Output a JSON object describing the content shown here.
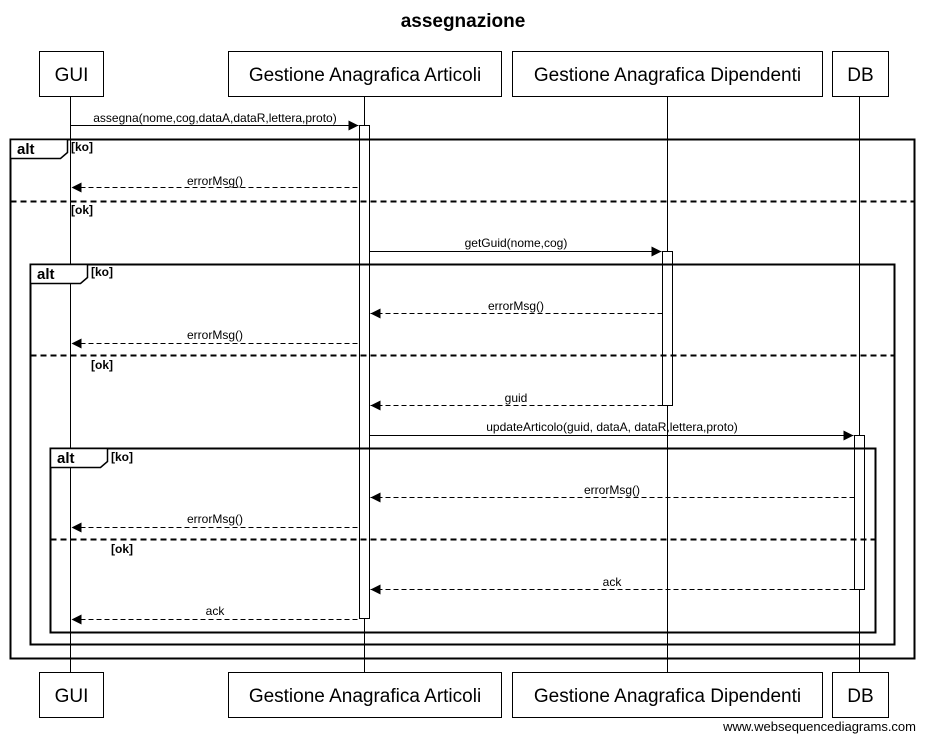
{
  "title": "assegnazione",
  "footer": "www.websequencediagrams.com",
  "participants": [
    {
      "id": "gui",
      "label": "GUI"
    },
    {
      "id": "art",
      "label": "Gestione Anagrafica Articoli"
    },
    {
      "id": "dip",
      "label": "Gestione Anagrafica Dipendenti"
    },
    {
      "id": "db",
      "label": "DB"
    }
  ],
  "messages": [
    {
      "label": "assegna(nome,cog,dataA,dataR,lettera,proto)",
      "from": "gui",
      "to": "art",
      "style": "solid"
    },
    {
      "label": "errorMsg()",
      "from": "art",
      "to": "gui",
      "style": "dashed"
    },
    {
      "label": "getGuid(nome,cog)",
      "from": "art",
      "to": "dip",
      "style": "solid"
    },
    {
      "label": "errorMsg()",
      "from": "dip",
      "to": "art",
      "style": "dashed"
    },
    {
      "label": "errorMsg()",
      "from": "art",
      "to": "gui",
      "style": "dashed"
    },
    {
      "label": "guid",
      "from": "dip",
      "to": "art",
      "style": "dashed"
    },
    {
      "label": "updateArticolo(guid, dataA, dataR,lettera,proto)",
      "from": "art",
      "to": "db",
      "style": "solid"
    },
    {
      "label": "errorMsg()",
      "from": "db",
      "to": "art",
      "style": "dashed"
    },
    {
      "label": "errorMsg()",
      "from": "art",
      "to": "gui",
      "style": "dashed"
    },
    {
      "label": "ack",
      "from": "db",
      "to": "art",
      "style": "dashed"
    },
    {
      "label": "ack",
      "from": "art",
      "to": "gui",
      "style": "dashed"
    }
  ],
  "frames": [
    {
      "keyword": "alt",
      "guards": [
        "[ko]",
        "[ok]"
      ]
    },
    {
      "keyword": "alt",
      "guards": [
        "[ko]",
        "[ok]"
      ]
    },
    {
      "keyword": "alt",
      "guards": [
        "[ko]",
        "[ok]"
      ]
    }
  ]
}
